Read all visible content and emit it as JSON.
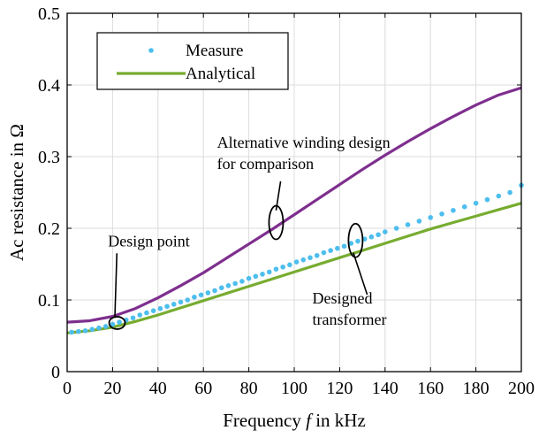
{
  "chart_data": {
    "type": "line",
    "title": "",
    "xlabel_prefix": "Frequency ",
    "xlabel_var": "f",
    "xlabel_suffix": " in kHz",
    "ylabel": "Ac resistance in Ω",
    "xlim": [
      0,
      200
    ],
    "ylim": [
      0,
      0.5
    ],
    "xticks": [
      0,
      20,
      40,
      60,
      80,
      100,
      120,
      140,
      160,
      180,
      200
    ],
    "yticks": [
      0,
      0.1,
      0.2,
      0.3,
      0.4,
      0.5
    ],
    "ytick_labels": [
      "0",
      "0.1",
      "0.2",
      "0.3",
      "0.4",
      "0.5"
    ],
    "grid": true,
    "legend_position": "top-left",
    "series": [
      {
        "name": "Measure",
        "style": "dots",
        "color": "#4dbeee",
        "x": [
          2,
          5,
          8,
          11,
          14,
          17,
          20,
          23,
          26,
          29,
          32,
          35,
          38,
          41,
          44,
          47,
          50,
          53,
          56,
          59,
          62,
          65,
          68,
          71,
          74,
          77,
          80,
          83,
          86,
          89,
          92,
          95,
          98,
          101,
          104,
          107,
          110,
          113,
          116,
          119,
          122,
          125,
          128,
          131,
          134,
          137,
          140,
          145,
          150,
          155,
          160,
          165,
          170,
          175,
          180,
          185,
          190,
          195,
          200
        ],
        "y": [
          0.055,
          0.056,
          0.057,
          0.059,
          0.061,
          0.063,
          0.066,
          0.069,
          0.072,
          0.075,
          0.079,
          0.082,
          0.085,
          0.088,
          0.091,
          0.094,
          0.097,
          0.1,
          0.104,
          0.107,
          0.11,
          0.113,
          0.117,
          0.12,
          0.123,
          0.126,
          0.13,
          0.133,
          0.136,
          0.139,
          0.143,
          0.146,
          0.149,
          0.153,
          0.156,
          0.159,
          0.162,
          0.166,
          0.169,
          0.172,
          0.175,
          0.179,
          0.182,
          0.185,
          0.188,
          0.191,
          0.195,
          0.2,
          0.205,
          0.21,
          0.215,
          0.22,
          0.225,
          0.23,
          0.235,
          0.24,
          0.245,
          0.25,
          0.26
        ]
      },
      {
        "name": "Analytical",
        "style": "line",
        "color": "#77ac30",
        "x": [
          0,
          10,
          20,
          30,
          40,
          50,
          60,
          70,
          80,
          90,
          100,
          110,
          120,
          130,
          140,
          150,
          160,
          170,
          180,
          190,
          200
        ],
        "y": [
          0.054,
          0.057,
          0.062,
          0.07,
          0.079,
          0.089,
          0.099,
          0.109,
          0.119,
          0.129,
          0.139,
          0.149,
          0.159,
          0.169,
          0.179,
          0.189,
          0.199,
          0.208,
          0.217,
          0.226,
          0.235
        ]
      },
      {
        "name": "",
        "style": "line",
        "color": "#7e2f8e",
        "x": [
          0,
          10,
          20,
          30,
          40,
          50,
          60,
          70,
          80,
          90,
          100,
          110,
          120,
          130,
          140,
          150,
          160,
          170,
          180,
          190,
          200
        ],
        "y": [
          0.069,
          0.071,
          0.077,
          0.088,
          0.103,
          0.12,
          0.138,
          0.158,
          0.178,
          0.198,
          0.219,
          0.24,
          0.261,
          0.282,
          0.302,
          0.321,
          0.339,
          0.356,
          0.372,
          0.386,
          0.396
        ]
      }
    ],
    "annotations": [
      {
        "lines": [
          "Alternative winding design",
          "for comparison"
        ],
        "ellipse_at": [
          92,
          0.208
        ],
        "text_at": [
          94,
          0.31
        ],
        "line_to": [
          92,
          0.225
        ]
      },
      {
        "lines": [
          "Design point"
        ],
        "ellipse_at": [
          22,
          0.068
        ],
        "text_at": [
          18,
          0.175
        ],
        "line_to": [
          21,
          0.075
        ]
      },
      {
        "lines": [
          "Designed",
          "transformer"
        ],
        "ellipse_at": [
          127,
          0.183
        ],
        "text_at": [
          108,
          0.095
        ],
        "line_to": [
          126,
          0.166
        ]
      }
    ]
  }
}
